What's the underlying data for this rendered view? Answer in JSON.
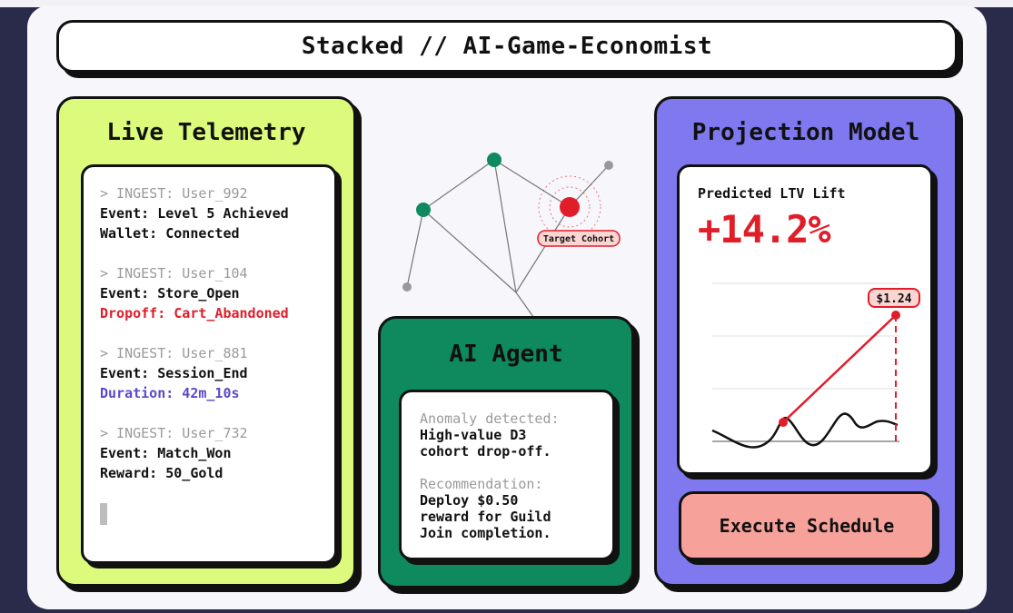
{
  "header": {
    "title": "Stacked // AI-Game-Economist"
  },
  "telemetry": {
    "title": "Live Telemetry",
    "logs": [
      {
        "meta": "> INGEST: User_992",
        "line1": "Event: Level 5 Achieved",
        "line2": "Wallet: Connected",
        "line2_style": "normal"
      },
      {
        "meta": "> INGEST: User_104",
        "line1": "Event: Store_Open",
        "line2": "Dropoff: Cart_Abandoned",
        "line2_style": "red"
      },
      {
        "meta": "> INGEST: User_881",
        "line1": "Event: Session_End",
        "line2": "Duration: 42m_10s",
        "line2_style": "purple"
      },
      {
        "meta": "> INGEST: User_732",
        "line1": "Event: Match_Won",
        "line2": "Reward: 50_Gold",
        "line2_style": "normal"
      }
    ]
  },
  "network": {
    "target_label": "Target Cohort"
  },
  "agent": {
    "title": "AI Agent",
    "anomaly_label": "Anomaly detected:",
    "anomaly_text": [
      "High-value D3",
      "cohort drop-off."
    ],
    "recommendation_label": "Recommendation:",
    "recommendation_text": [
      "Deploy $0.50",
      "reward for Guild",
      "Join completion."
    ]
  },
  "projection": {
    "title": "Projection Model",
    "ltv_label": "Predicted LTV Lift",
    "ltv_value": "+14.2%",
    "price_tag": "$1.24",
    "execute_label": "Execute Schedule"
  },
  "colors": {
    "telemetry_bg": "#dcfb7c",
    "agent_bg": "#0e8a5e",
    "projection_bg": "#7f78ee",
    "accent_red": "#e11d2a",
    "accent_purple": "#5a49c9",
    "button_bg": "#f7a19b"
  }
}
